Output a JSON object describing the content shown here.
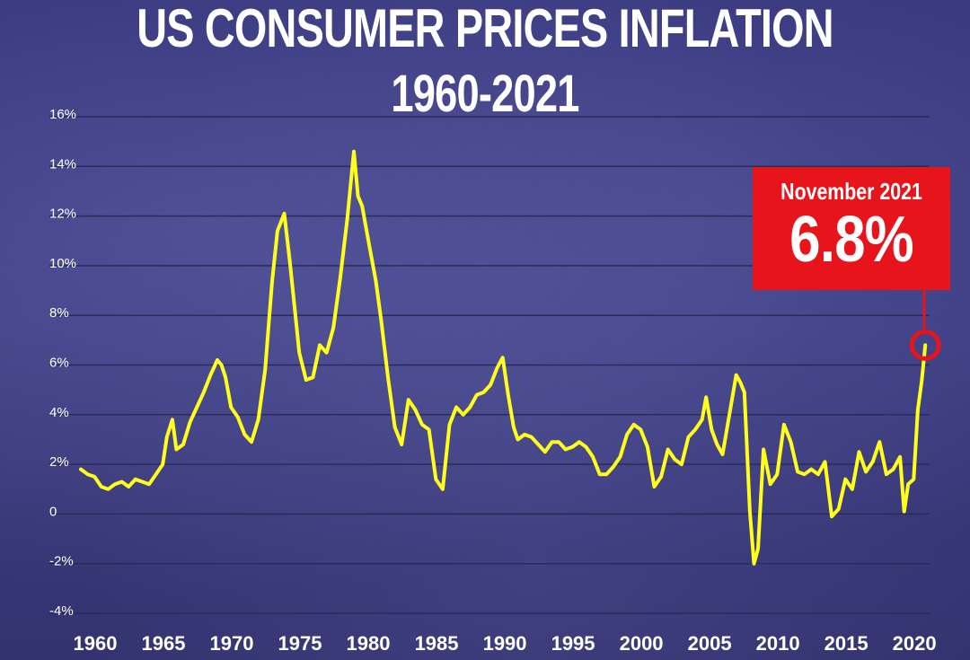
{
  "title_line1": "US CONSUMER PRICES INFLATION",
  "title_line2": "1960-2021",
  "colors": {
    "line": "#ffff1a",
    "callout": "#e8141c",
    "background": "#3a3a7c",
    "grid": "#2a2a5a"
  },
  "callout": {
    "date_label": "November 2021",
    "value_label": "6.8%",
    "x": 2021.85,
    "y": 6.8
  },
  "chart_data": {
    "type": "line",
    "title": "US CONSUMER PRICES INFLATION 1960-2021",
    "xlabel": "",
    "ylabel": "",
    "xlim": [
      1960,
      2021.9
    ],
    "ylim": [
      -4,
      16
    ],
    "grid": true,
    "y_ticks": [
      {
        "value": 16,
        "label": "16%"
      },
      {
        "value": 14,
        "label": "14%"
      },
      {
        "value": 12,
        "label": "12%"
      },
      {
        "value": 10,
        "label": "10%"
      },
      {
        "value": 8,
        "label": "8%"
      },
      {
        "value": 6,
        "label": "6%"
      },
      {
        "value": 4,
        "label": "4%"
      },
      {
        "value": 2,
        "label": "2%"
      },
      {
        "value": 0,
        "label": "0"
      },
      {
        "value": -2,
        "label": "-2%"
      },
      {
        "value": -4,
        "label": "-4%"
      }
    ],
    "x_ticks": [
      {
        "value": 1960,
        "label": "1960"
      },
      {
        "value": 1965,
        "label": "1965"
      },
      {
        "value": 1970,
        "label": "1970"
      },
      {
        "value": 1975,
        "label": "1975"
      },
      {
        "value": 1980,
        "label": "1980"
      },
      {
        "value": 1985,
        "label": "1985"
      },
      {
        "value": 1990,
        "label": "1990"
      },
      {
        "value": 1995,
        "label": "1995"
      },
      {
        "value": 2000,
        "label": "2000"
      },
      {
        "value": 2005,
        "label": "2005"
      },
      {
        "value": 2010,
        "label": "2010"
      },
      {
        "value": 2015,
        "label": "2015"
      },
      {
        "value": 2020,
        "label": "2020"
      }
    ],
    "series": [
      {
        "x": [
          1960.0,
          1960.5,
          1961.0,
          1961.5,
          1962.0,
          1962.5,
          1963.0,
          1963.5,
          1964.0,
          1964.5,
          1965.0,
          1965.5,
          1966.0,
          1966.3,
          1966.7,
          1967.0,
          1967.5,
          1968.0,
          1968.5,
          1969.0,
          1969.5,
          1970.0,
          1970.3,
          1970.6,
          1971.0,
          1971.5,
          1972.0,
          1972.5,
          1973.0,
          1973.5,
          1974.0,
          1974.4,
          1974.9,
          1975.3,
          1975.6,
          1976.0,
          1976.5,
          1977.0,
          1977.5,
          1978.0,
          1978.5,
          1979.0,
          1979.5,
          1980.0,
          1980.3,
          1980.6,
          1981.0,
          1981.3,
          1981.6,
          1982.0,
          1982.5,
          1983.0,
          1983.5,
          1984.0,
          1984.5,
          1985.0,
          1985.5,
          1986.0,
          1986.5,
          1987.0,
          1987.5,
          1988.0,
          1988.5,
          1989.0,
          1989.5,
          1990.0,
          1990.5,
          1990.9,
          1991.3,
          1991.7,
          1992.0,
          1992.5,
          1993.0,
          1993.5,
          1994.0,
          1994.5,
          1995.0,
          1995.5,
          1996.0,
          1996.5,
          1997.0,
          1997.5,
          1998.0,
          1998.5,
          1999.0,
          1999.5,
          2000.0,
          2000.5,
          2001.0,
          2001.5,
          2002.0,
          2002.5,
          2003.0,
          2003.5,
          2004.0,
          2004.5,
          2005.0,
          2005.5,
          2005.8,
          2006.2,
          2006.6,
          2007.0,
          2007.5,
          2008.0,
          2008.3,
          2008.6,
          2009.0,
          2009.3,
          2009.6,
          2010.0,
          2010.5,
          2011.0,
          2011.5,
          2012.0,
          2012.5,
          2013.0,
          2013.5,
          2014.0,
          2014.5,
          2015.0,
          2015.5,
          2016.0,
          2016.5,
          2017.0,
          2017.5,
          2018.0,
          2018.5,
          2019.0,
          2019.5,
          2020.0,
          2020.3,
          2020.6,
          2021.0,
          2021.3,
          2021.6,
          2021.85
        ],
        "y": [
          1.8,
          1.6,
          1.5,
          1.1,
          1.0,
          1.2,
          1.3,
          1.1,
          1.4,
          1.3,
          1.2,
          1.6,
          2.0,
          3.1,
          3.8,
          2.6,
          2.8,
          3.7,
          4.3,
          4.9,
          5.6,
          6.2,
          6.0,
          5.5,
          4.3,
          3.9,
          3.2,
          2.9,
          3.8,
          5.8,
          9.3,
          11.4,
          12.1,
          10.2,
          8.6,
          6.5,
          5.4,
          5.5,
          6.8,
          6.5,
          7.5,
          9.5,
          11.8,
          14.6,
          12.8,
          12.4,
          11.2,
          10.3,
          9.4,
          7.8,
          5.5,
          3.5,
          2.8,
          4.6,
          4.2,
          3.6,
          3.4,
          1.4,
          1.0,
          3.6,
          4.3,
          4.0,
          4.3,
          4.8,
          4.9,
          5.2,
          5.9,
          6.3,
          4.8,
          3.5,
          3.0,
          3.2,
          3.1,
          2.8,
          2.5,
          2.9,
          2.9,
          2.6,
          2.7,
          2.9,
          2.7,
          2.3,
          1.6,
          1.6,
          1.9,
          2.3,
          3.2,
          3.6,
          3.4,
          2.7,
          1.1,
          1.5,
          2.6,
          2.2,
          2.0,
          3.1,
          3.4,
          3.8,
          4.7,
          3.4,
          2.8,
          2.4,
          4.0,
          5.6,
          5.3,
          4.9,
          0.1,
          -2.0,
          -1.4,
          2.6,
          1.2,
          1.6,
          3.6,
          2.9,
          1.7,
          1.6,
          1.8,
          1.6,
          2.1,
          -0.1,
          0.2,
          1.4,
          1.0,
          2.5,
          1.7,
          2.1,
          2.9,
          1.6,
          1.8,
          2.3,
          0.1,
          1.2,
          1.4,
          4.2,
          5.4,
          6.8
        ]
      }
    ]
  }
}
